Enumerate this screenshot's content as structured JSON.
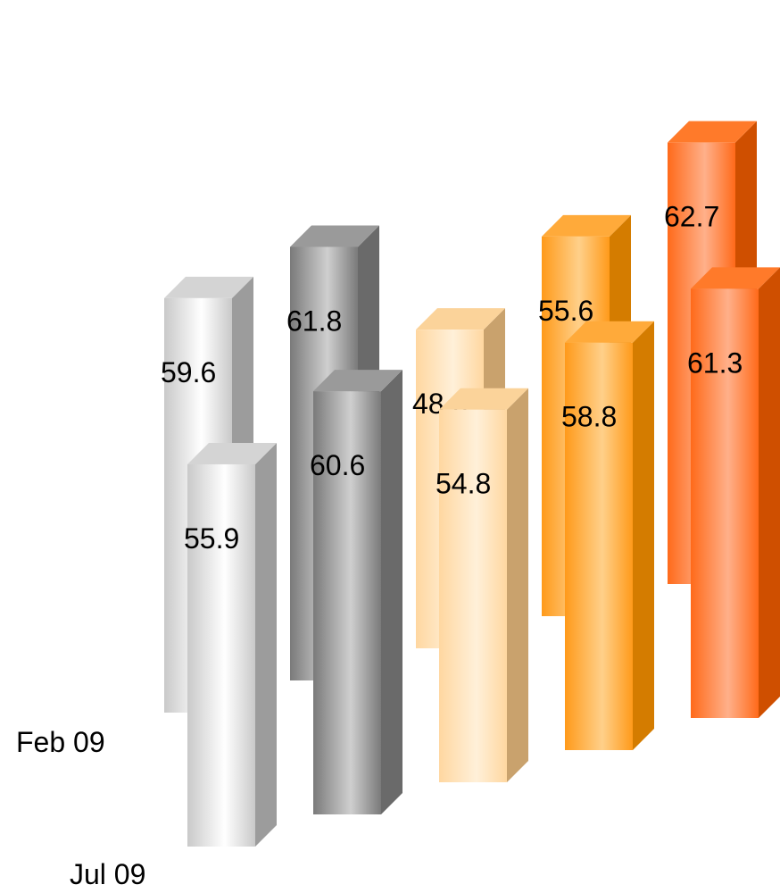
{
  "chart_data": {
    "type": "bar",
    "subtype": "3d-columns",
    "title": "",
    "xlabel": "",
    "ylabel": "",
    "rows": [
      "Feb 09",
      "Jul 09"
    ],
    "columns": 5,
    "series": [
      {
        "values": [
          59.6,
          61.8,
          48.6,
          55.6,
          62.7
        ]
      },
      {
        "values": [
          55.9,
          60.6,
          54.8,
          58.8,
          61.3
        ]
      }
    ],
    "grid": false,
    "legend": "none",
    "column_colors": [
      {
        "front_light": "#ffffff",
        "front_dark": "#c9c9c9",
        "side": "#9c9c9c",
        "top": "#d4d4d4"
      },
      {
        "front_light": "#cfcfcf",
        "front_dark": "#7a7a7a",
        "side": "#6a6a6a",
        "top": "#9a9a9a"
      },
      {
        "front_light": "#fff0d9",
        "front_dark": "#ffd7a0",
        "side": "#c9a26d",
        "top": "#fbd39a"
      },
      {
        "front_light": "#ffd08a",
        "front_dark": "#ff9a1a",
        "side": "#d47c00",
        "top": "#ffaa3a"
      },
      {
        "front_light": "#ffb08a",
        "front_dark": "#ff6a1a",
        "side": "#cf4f00",
        "top": "#ff7a2a"
      }
    ]
  }
}
